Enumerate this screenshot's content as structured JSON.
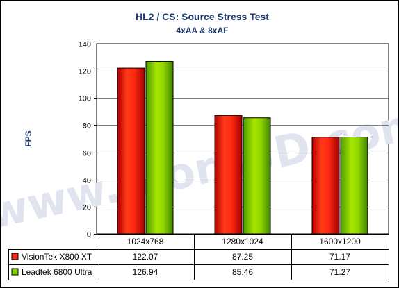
{
  "chart_data": {
    "type": "bar",
    "title": "HL2 / CS: Source Stress Test",
    "subtitle": "4xAA & 8xAF",
    "ylabel": "FPS",
    "xlabel": "",
    "categories": [
      "1024x768",
      "1280x1024",
      "1600x1200"
    ],
    "ylim": [
      0,
      140
    ],
    "yticks": [
      0,
      20,
      40,
      60,
      80,
      100,
      120,
      140
    ],
    "grid": true,
    "legend": "data-table",
    "series": [
      {
        "name": "VisionTek X800 XT",
        "values": [
          122.07,
          87.25,
          71.17
        ],
        "color": "#ff2a1a",
        "table_values": [
          "122.07",
          "87.25",
          "71.17"
        ]
      },
      {
        "name": "Leadtek 6800 Ultra",
        "values": [
          126.94,
          85.46,
          71.27
        ],
        "color": "#7fd400",
        "table_values": [
          "126.94",
          "85.46",
          "71.27"
        ]
      }
    ],
    "watermark": "www.Bjorn3D.com"
  }
}
